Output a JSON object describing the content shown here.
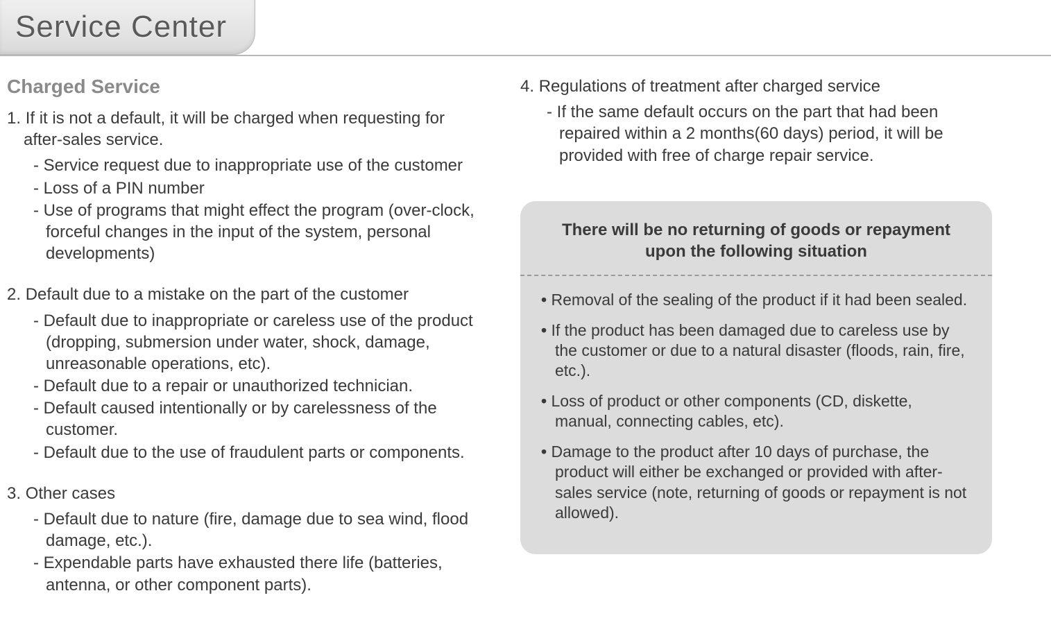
{
  "page": {
    "title": "Service Center",
    "section_heading": "Charged Service",
    "colors": {
      "tab_gradient_top": "#f0f0f0",
      "tab_gradient_bottom": "#dadada",
      "tab_border": "#b8b8b8",
      "body_text": "#3a3a3a",
      "heading_gray": "#8a8a8a",
      "title_text": "#5a5a5a",
      "notice_bg": "#dcdcdc",
      "dashed": "#9a9a9a",
      "white": "#ffffff"
    },
    "typography": {
      "title_fontsize_pt": 33,
      "section_heading_fontsize_pt": 21,
      "body_fontsize_pt": 18,
      "notice_title_fontsize_pt": 18,
      "font_family": "Segoe UI / Arial"
    }
  },
  "left": {
    "item1": {
      "num": "1.",
      "text": "If it is not a default, it will be charged when requesting for after-sales service.",
      "subs": [
        "Service request due to inappropriate use of the customer",
        "Loss of a PIN number",
        "Use of programs that might effect the program (over-clock, forceful changes in the input of the system, personal developments)"
      ]
    },
    "item2": {
      "num": "2.",
      "text": "Default due to a mistake on the part of the customer",
      "subs": [
        "Default due to inappropriate or careless use of the product (dropping, submersion under water, shock, damage, unreasonable operations, etc).",
        "Default due to a repair or unauthorized technician.",
        "Default caused intentionally or by carelessness of the customer.",
        "Default due to the use of fraudulent parts or components."
      ]
    },
    "item3": {
      "num": "3.",
      "text": "Other cases",
      "subs": [
        "Default due to nature (fire, damage due to sea wind, flood damage, etc.).",
        "Expendable parts have exhausted there life (batteries, antenna, or other component parts)."
      ]
    }
  },
  "right": {
    "item4": {
      "num": "4.",
      "text": "Regulations of treatment after charged service",
      "subs": [
        "If the same default occurs on the part that had been repaired within a 2 months(60 days) period, it will be provided with free of charge repair service."
      ]
    },
    "notice": {
      "title": "There will be no returning of goods or repayment upon the following situation",
      "bullets": [
        "Removal of the sealing of the product if it had been sealed.",
        "If the product has been damaged due to careless use by the customer or due to a natural disaster (floods, rain, fire, etc.).",
        "Loss of product or other components (CD, diskette, manual, connecting cables, etc).",
        "Damage to the product after 10 days of purchase, the product will either be exchanged or provided with after-sales service (note, returning of goods or repayment is not allowed)."
      ]
    }
  }
}
